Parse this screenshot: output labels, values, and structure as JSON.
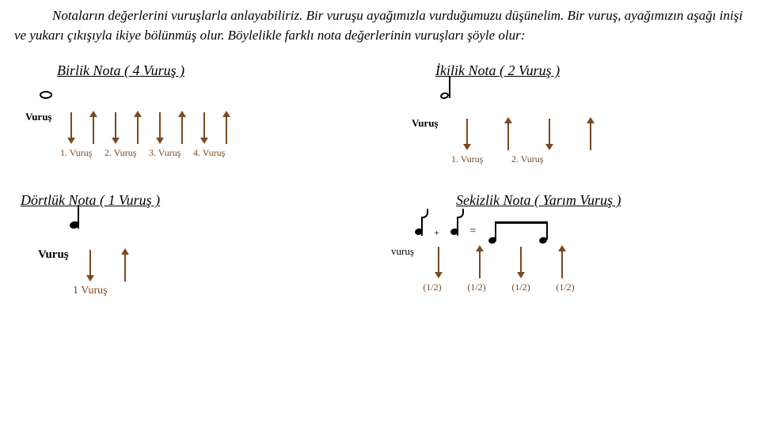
{
  "intro": "Notaların değerlerini vuruşlarla anlayabiliriz. Bir vuruşu ayağımızla vurduğumuzu düşünelim. Bir vuruş, ayağımızın aşağı inişi ve yukarı çıkışıyla ikiye bölünmüş olur. Böylelikle farklı nota değerlerinin vuruşları şöyle olur:",
  "colors": {
    "arrow": "#7a4a21",
    "beat_label": "#7a4a21"
  },
  "sections": {
    "birlik": {
      "title": "Birlik Nota ( 4 Vuruş )",
      "vurus_label": "Vuruş",
      "arrows": [
        "down",
        "up",
        "down",
        "up",
        "down",
        "up",
        "down",
        "up"
      ],
      "beat_labels": [
        "1. Vuruş",
        "2. Vuruş",
        "3. Vuruş",
        "4. Vuruş"
      ]
    },
    "ikilik": {
      "title": "İkilik Nota ( 2 Vuruş )",
      "vurus_label": "Vuruş",
      "arrows": [
        "down",
        "up",
        "down",
        "up"
      ],
      "beat_labels": [
        "1. Vuruş",
        "2. Vuruş"
      ]
    },
    "dortluk": {
      "title": "Dörtlük Nota ( 1 Vuruş )",
      "vurus_label": "Vuruş",
      "arrows": [
        "down",
        "up"
      ],
      "beat_labels": [
        "1  Vuruş"
      ]
    },
    "sekizlik": {
      "title": "Sekizlik Nota ( Yarım Vuruş )",
      "vurus_label": "vuruş",
      "plus": "₊",
      "equals": "=",
      "arrows": [
        "down",
        "up",
        "down",
        "up"
      ],
      "frac_labels": [
        "(1/2)",
        "(1/2)",
        "(1/2)",
        "(1/2)"
      ]
    }
  }
}
